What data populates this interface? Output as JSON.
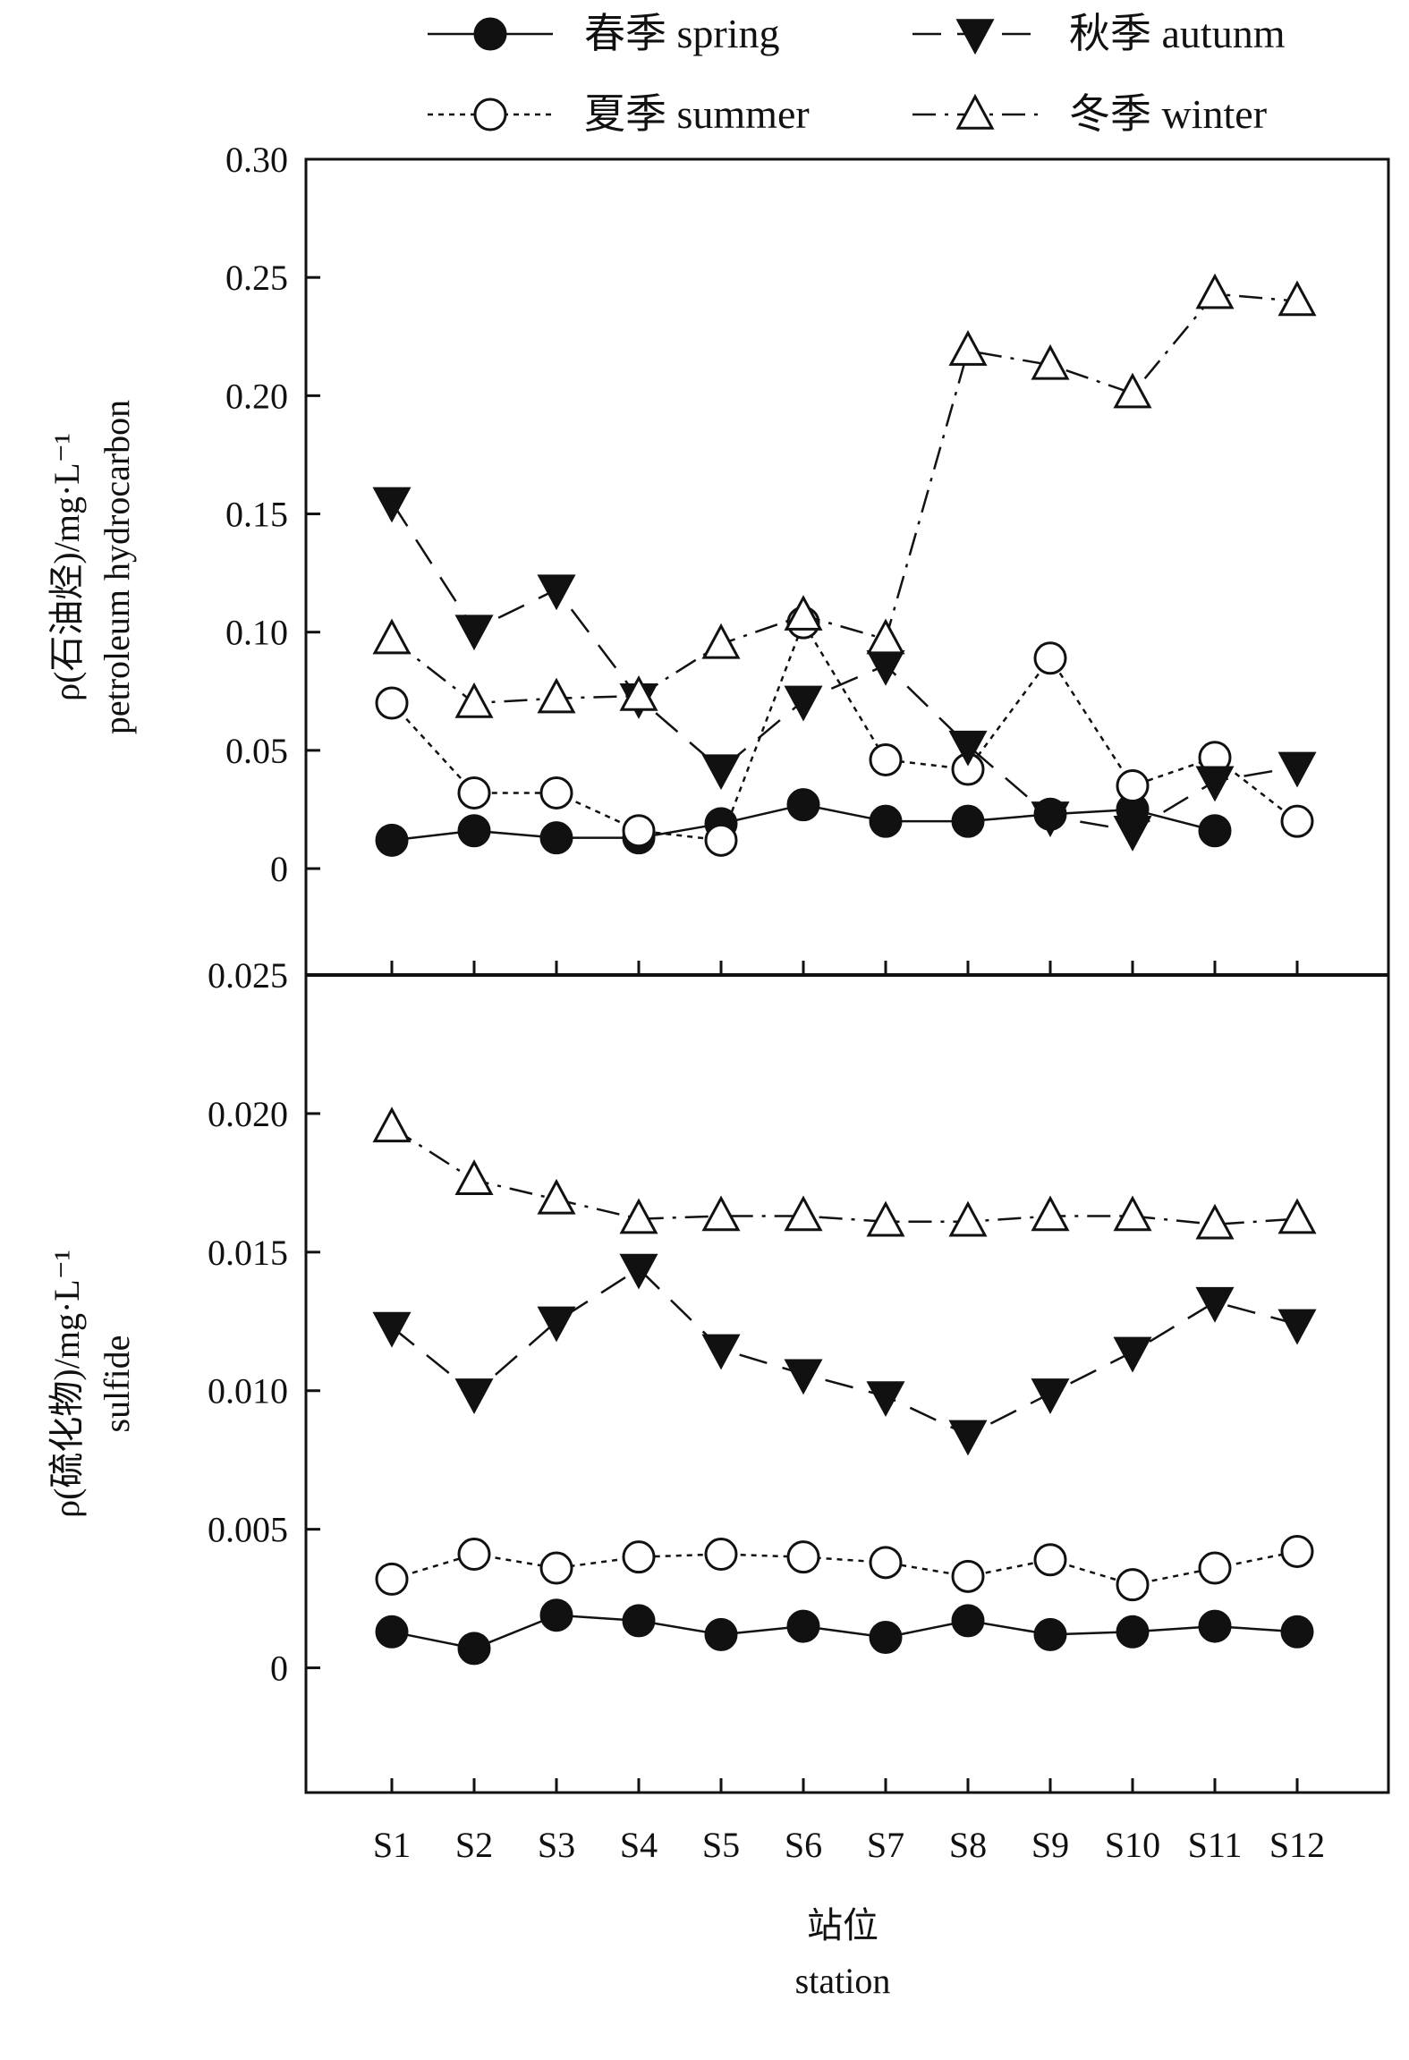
{
  "chart_data": [
    {
      "type": "line",
      "ylabel_lines": [
        "ρ(石油烃)/mg·L⁻¹",
        "petroleum hydrocarbon"
      ],
      "ylim": [
        -0.045,
        0.3
      ],
      "yticks": [
        0.3,
        0.25,
        0.2,
        0.15,
        0.1,
        0.05,
        0
      ],
      "ytick_labels": [
        "0.30",
        "0.25",
        "0.20",
        "0.15",
        "0.10",
        "0.05",
        "0"
      ],
      "categories": [
        "S1",
        "S2",
        "S3",
        "S4",
        "S5",
        "S6",
        "S7",
        "S8",
        "S9",
        "S10",
        "S11",
        "S12"
      ],
      "series": [
        {
          "name": "春季 spring",
          "values": [
            0.012,
            0.016,
            0.013,
            0.013,
            0.019,
            0.027,
            0.02,
            0.02,
            0.023,
            0.025,
            0.016,
            null
          ]
        },
        {
          "name": "夏季 summer",
          "values": [
            0.07,
            0.032,
            0.032,
            0.016,
            0.012,
            0.104,
            0.046,
            0.042,
            0.089,
            0.035,
            0.047,
            0.02
          ]
        },
        {
          "name": "秋季 autunm",
          "values": [
            0.155,
            0.101,
            0.118,
            0.072,
            0.042,
            0.071,
            0.086,
            0.052,
            0.022,
            0.016,
            0.037,
            0.043
          ]
        },
        {
          "name": "冬季 winter",
          "values": [
            0.097,
            0.07,
            0.072,
            0.073,
            0.095,
            0.107,
            0.097,
            0.219,
            0.213,
            0.201,
            0.243,
            0.24
          ]
        }
      ]
    },
    {
      "type": "line",
      "ylabel_lines": [
        "ρ(硫化物)/mg·L⁻¹",
        "sulfide"
      ],
      "ylim": [
        -0.0045,
        0.025
      ],
      "yticks": [
        0.025,
        0.02,
        0.015,
        0.01,
        0.005,
        0
      ],
      "ytick_labels": [
        "0.025",
        "0.020",
        "0.015",
        "0.010",
        "0.005",
        "0"
      ],
      "categories": [
        "S1",
        "S2",
        "S3",
        "S4",
        "S5",
        "S6",
        "S7",
        "S8",
        "S9",
        "S10",
        "S11",
        "S12"
      ],
      "xlabel_lines": [
        "站位",
        "station"
      ],
      "series": [
        {
          "name": "春季 spring",
          "values": [
            0.0013,
            0.0007,
            0.0019,
            0.0017,
            0.0012,
            0.0015,
            0.0011,
            0.0017,
            0.0012,
            0.0013,
            0.0015,
            0.0013
          ]
        },
        {
          "name": "夏季 summer",
          "values": [
            0.0032,
            0.0041,
            0.0036,
            0.004,
            0.0041,
            0.004,
            0.0038,
            0.0033,
            0.0039,
            0.003,
            0.0036,
            0.0042
          ]
        },
        {
          "name": "秋季 autunm",
          "values": [
            0.0123,
            0.0099,
            0.0125,
            0.0144,
            0.0115,
            0.0106,
            0.0098,
            0.0084,
            0.0099,
            0.0114,
            0.0132,
            0.0124
          ]
        },
        {
          "name": "冬季 winter",
          "values": [
            0.0195,
            0.0176,
            0.0169,
            0.0162,
            0.0163,
            0.0163,
            0.0161,
            0.0161,
            0.0163,
            0.0163,
            0.016,
            0.0162
          ]
        }
      ]
    }
  ],
  "legend": {
    "placement": "top",
    "items": [
      {
        "label": "春季 spring",
        "marker": "filled-circle",
        "line": "solid"
      },
      {
        "label": "秋季 autunm",
        "marker": "filled-triangle-down",
        "line": "long-dash"
      },
      {
        "label": "夏季 summer",
        "marker": "open-circle",
        "line": "short-dash"
      },
      {
        "label": "冬季 winter",
        "marker": "open-triangle-up",
        "line": "dash-dot"
      }
    ]
  }
}
